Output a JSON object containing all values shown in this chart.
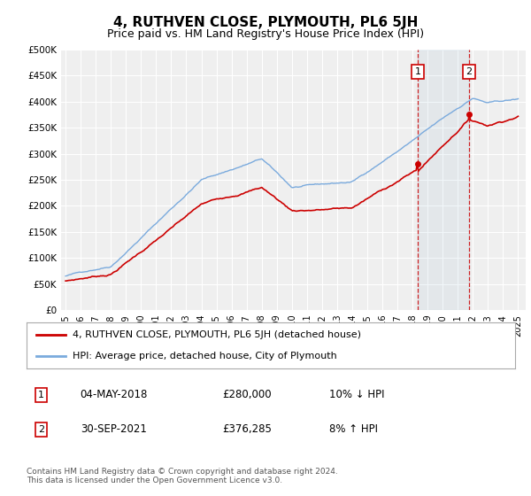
{
  "title": "4, RUTHVEN CLOSE, PLYMOUTH, PL6 5JH",
  "subtitle": "Price paid vs. HM Land Registry's House Price Index (HPI)",
  "ylim": [
    0,
    500000
  ],
  "yticks": [
    0,
    50000,
    100000,
    150000,
    200000,
    250000,
    300000,
    350000,
    400000,
    450000,
    500000
  ],
  "ytick_labels": [
    "£0",
    "£50K",
    "£100K",
    "£150K",
    "£200K",
    "£250K",
    "£300K",
    "£350K",
    "£400K",
    "£450K",
    "£500K"
  ],
  "xlim_start": 1994.7,
  "xlim_end": 2025.5,
  "xtick_years": [
    1995,
    1996,
    1997,
    1998,
    1999,
    2000,
    2001,
    2002,
    2003,
    2004,
    2005,
    2006,
    2007,
    2008,
    2009,
    2010,
    2011,
    2012,
    2013,
    2014,
    2015,
    2016,
    2017,
    2018,
    2019,
    2020,
    2021,
    2022,
    2023,
    2024,
    2025
  ],
  "legend_label_red": "4, RUTHVEN CLOSE, PLYMOUTH, PL6 5JH (detached house)",
  "legend_label_blue": "HPI: Average price, detached house, City of Plymouth",
  "red_color": "#cc0000",
  "blue_color": "#7aaadd",
  "marker1_x": 2018.34,
  "marker1_y": 280000,
  "marker1_label": "1",
  "marker1_date": "04-MAY-2018",
  "marker1_price": "£280,000",
  "marker1_hpi": "10% ↓ HPI",
  "marker2_x": 2021.75,
  "marker2_y": 376285,
  "marker2_label": "2",
  "marker2_date": "30-SEP-2021",
  "marker2_price": "£376,285",
  "marker2_hpi": "8% ↑ HPI",
  "footer": "Contains HM Land Registry data © Crown copyright and database right 2024.\nThis data is licensed under the Open Government Licence v3.0.",
  "bg_color": "#ffffff",
  "plot_bg_color": "#efefef"
}
